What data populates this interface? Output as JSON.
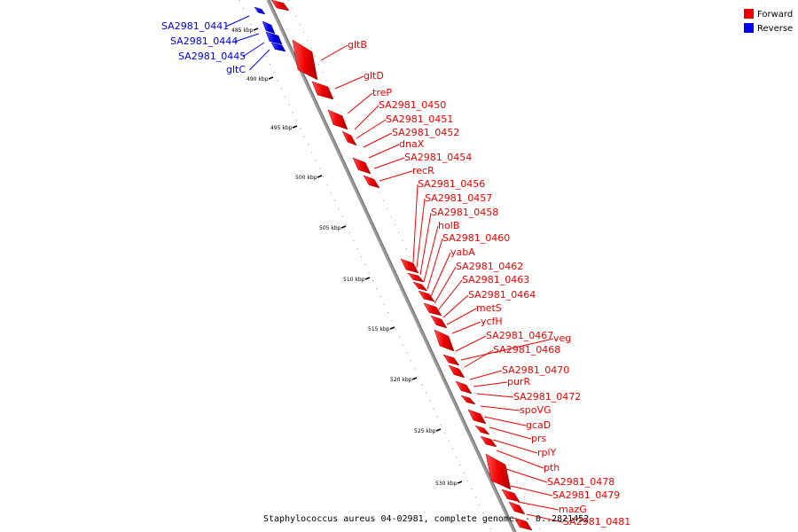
{
  "caption": "Staphylococcus aureus 04-02981, complete genome. - 0..2821452",
  "legend": {
    "placement": "top-right",
    "items": [
      {
        "label": "Forward",
        "color": "#ee0000"
      },
      {
        "label": "Reverse",
        "color": "#0000ee"
      }
    ]
  },
  "scale_labels": [
    "485 kbp",
    "490 kbp",
    "495 kbp",
    "500 kbp",
    "505 kbp",
    "510 kbp",
    "515 kbp",
    "520 kbp",
    "525 kbp",
    "530 kbp"
  ],
  "reverse_genes": [
    "SA2981_0441",
    "SA2981_0444",
    "SA2981_0445",
    "gltC"
  ],
  "forward_genes": [
    "gltB",
    "gltD",
    "treP",
    "SA2981_0450",
    "SA2981_0451",
    "SA2981_0452",
    "dnaX",
    "SA2981_0454",
    "recR",
    "SA2981_0456",
    "SA2981_0457",
    "SA2981_0458",
    "holB",
    "SA2981_0460",
    "yabA",
    "SA2981_0462",
    "SA2981_0463",
    "SA2981_0464",
    "metS",
    "ycfH",
    "SA2981_0467",
    "veg",
    "SA2981_0468",
    "SA2981_0470",
    "purR",
    "SA2981_0472",
    "spoVG",
    "gcaD",
    "prs",
    "rplY",
    "pth",
    "SA2981_0478",
    "SA2981_0479",
    "mazG",
    "SA2981_0481"
  ],
  "colors": {
    "forward": "#ee0000",
    "reverse": "#0000ee",
    "backbone": "#999999"
  }
}
